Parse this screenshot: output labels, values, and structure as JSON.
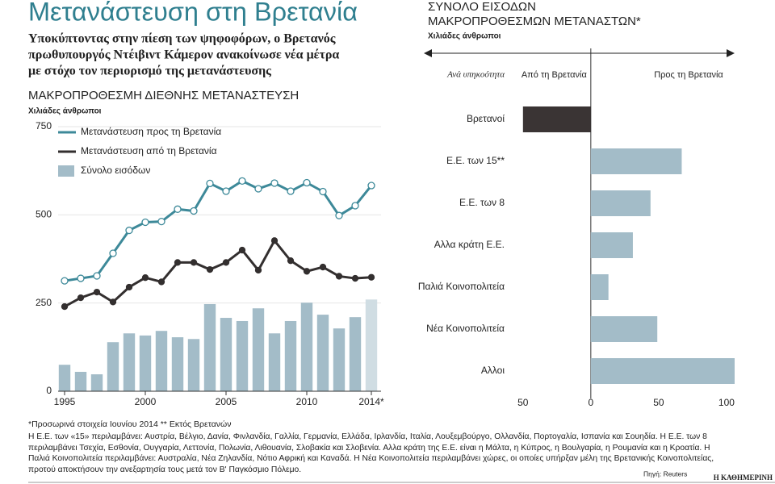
{
  "header": {
    "title": "Μετανάστευση στη Βρετανία",
    "subtitle_lines": [
      "Υποκύπτοντας στην πίεση των ψηφοφόρων, ο Βρετανός",
      "πρωθυπουργός Ντέιβιντ Κάμερον ανακοίνωσε νέα μέτρα",
      "με στόχο τον περιορισμό της μετανάστευσης"
    ]
  },
  "chart_data": [
    {
      "type": "line",
      "title": "ΜΑΚΡΟΠΡΟΘΕΣΜΗ ΔΙΕΘΝΗΣ ΜΕΤΑΝΑΣΤΕΥΣΗ",
      "y_label": "Χιλιάδες άνθρωποι",
      "x": [
        1995,
        1996,
        1997,
        1998,
        1999,
        2000,
        2001,
        2002,
        2003,
        2004,
        2005,
        2006,
        2007,
        2008,
        2009,
        2010,
        2011,
        2012,
        2013,
        2014
      ],
      "xlim": [
        1994.6,
        2014.6
      ],
      "xticks": [
        1995,
        2000,
        2005,
        2010,
        {
          "value": 2014,
          "label": "2014*"
        }
      ],
      "ylim": [
        0,
        750
      ],
      "yticks": [
        0,
        250,
        500,
        750
      ],
      "grid": true,
      "series": [
        {
          "name": "Μετανάστευση προς τη Βρετανία",
          "type": "line",
          "marker": "open",
          "color": "#3d8999",
          "values": [
            313,
            320,
            327,
            391,
            456,
            479,
            481,
            516,
            511,
            589,
            567,
            596,
            574,
            590,
            567,
            591,
            566,
            498,
            526,
            583
          ]
        },
        {
          "name": "Μετανάστευση από τη Βρετανία",
          "type": "line",
          "marker": "filled",
          "color": "#332f2f",
          "values": [
            240,
            265,
            281,
            253,
            295,
            322,
            310,
            365,
            365,
            345,
            365,
            400,
            343,
            427,
            370,
            340,
            352,
            326,
            320,
            323
          ]
        },
        {
          "name": "Σύνολο εισόδων",
          "type": "bar",
          "color": "#a3bcc8",
          "colors": [
            "#a3bcc8",
            "#a3bcc8",
            "#a3bcc8",
            "#a3bcc8",
            "#a3bcc8",
            "#a3bcc8",
            "#a3bcc8",
            "#a3bcc8",
            "#a3bcc8",
            "#a3bcc8",
            "#a3bcc8",
            "#a3bcc8",
            "#a3bcc8",
            "#a3bcc8",
            "#a3bcc8",
            "#a3bcc8",
            "#a3bcc8",
            "#a3bcc8",
            "#a3bcc8",
            "#d0dde3"
          ],
          "values": [
            75,
            55,
            48,
            139,
            164,
            158,
            171,
            153,
            148,
            247,
            208,
            199,
            235,
            164,
            199,
            251,
            217,
            178,
            210,
            260
          ]
        }
      ]
    },
    {
      "type": "bar",
      "orientation": "horizontal",
      "title_lines": [
        "ΣΥΝΟΛΟ ΕΙΣΟΔΩΝ",
        "ΜΑΚΡΟΠΡΟΘΕΣΜΩΝ ΜΕΤΑΝΑΣΤΩΝ*"
      ],
      "x_label": "Χιλιάδες άνθρωποι",
      "category_header": "Ανά υπηκοότητα",
      "direction_labels": [
        "Από τη Βρετανία",
        "Προς τη Βρετανία"
      ],
      "categories": [
        "Βρετανοί",
        "Ε.Ε. των 15**",
        "Ε.Ε. των 8",
        "Αλλα κράτη Ε.Ε.",
        "Παλιά Κοινοπολιτεία",
        "Νέα Κοινοπολιτεία",
        "Αλλοι"
      ],
      "values": [
        -50,
        67,
        44,
        31,
        13,
        49,
        106
      ],
      "negative_color": "#3a3434",
      "color": "#a3bcc8",
      "xlim": [
        -60,
        106
      ],
      "xticks": [
        {
          "value": -50,
          "label": "50"
        },
        0,
        50,
        100
      ]
    }
  ],
  "footer": {
    "footnote": "*Προσωρινά στοιχεία Ιουνίου 2014  ** Εκτός Βρετανών",
    "note": "Η Ε.Ε. των «15» περιλαμβάνει: Αυστρία, Βέλγιο, Δανία, Φινλανδία, Γαλλία, Γερμανία, Ελλάδα, Ιρλανδία, Ιταλία, Λουξεμβούργο, Ολλανδία, Πορτογαλία, Ισπανία και Σουηδία. Η Ε.Ε. των 8 περιλαμβάνει Τσεχία, Εσθονία, Ουγγαρία, Λεττονία, Πολωνία, Λιθουανία, Σλοβακία και Σλοβενία. Αλλα κράτη της Ε.Ε. είναι η Μάλτα, η Κύπρος, η Βουλγαρία, η Ρουμανία και η Κροατία. Η Παλιά Κοινοπολιτεία περιλαμβάνει: Αυστραλία, Νέα Ζηλανδία, Νότιο Αφρική και Καναδά. Η Νέα Κοινοπολιτεία περιλαμβάνει χώρες, οι οποίες υπήρξαν μέλη της Βρετανικής Κοινοπολιτείας, προτού αποκτήσουν την ανεξαρτησία τους μετά τον Β' Παγκόσμιο Πόλεμο.",
    "source": "Πηγή: Reuters",
    "brand": "Η ΚΑΘΗΜΕΡΙΝΗ"
  }
}
